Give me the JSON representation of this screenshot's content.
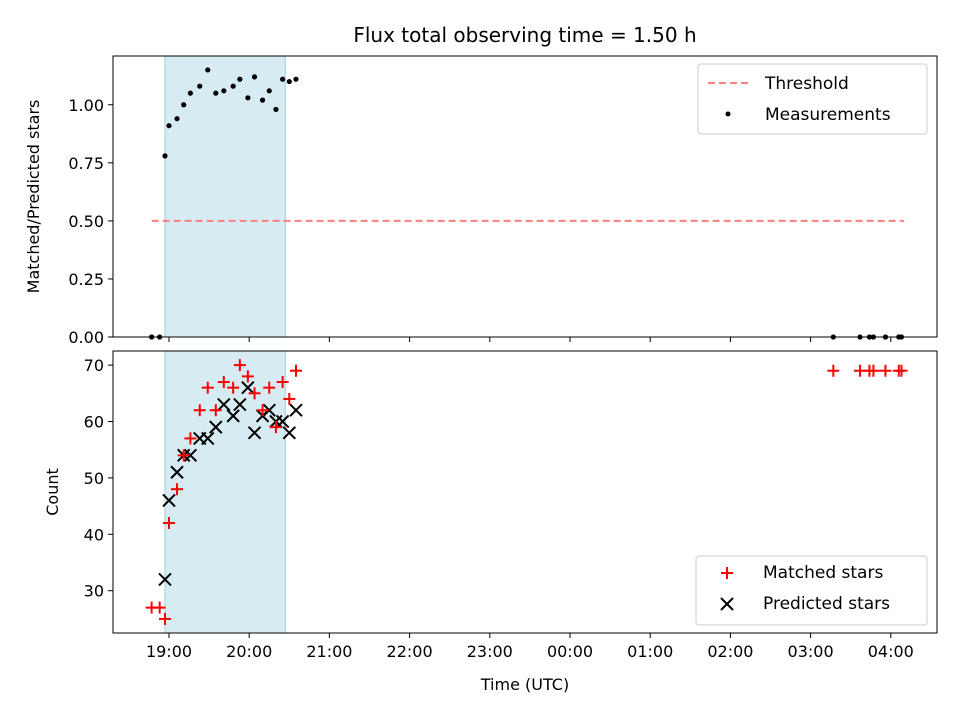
{
  "chart_data": [
    {
      "type": "scatter",
      "title": "Flux total observing time = 1.50 h",
      "xlabel": "",
      "ylabel": "Matched/Predicted stars",
      "ylim": [
        0,
        1.21
      ],
      "yticks": [
        "0.00",
        "0.25",
        "0.50",
        "0.75",
        "1.00"
      ],
      "ytick_values": [
        0,
        0.25,
        0.5,
        0.75,
        1.0
      ],
      "x_axis": "time (UTC), shared with lower panel",
      "shaded_interval": [
        "18:57",
        "20:27"
      ],
      "legend_position": "upper right",
      "series": [
        {
          "name": "Threshold",
          "kind": "line",
          "style": "dashed",
          "color": "#ff7f7f",
          "x": [
            "18:47",
            "04:10"
          ],
          "y": [
            0.5,
            0.5
          ]
        },
        {
          "name": "Measurements",
          "kind": "scatter",
          "color": "#000000",
          "x": [
            "18:47",
            "18:53",
            "18:57",
            "19:00",
            "19:06",
            "19:11",
            "19:16",
            "19:23",
            "19:29",
            "19:35",
            "19:41",
            "19:48",
            "19:53",
            "19:59",
            "20:04",
            "20:10",
            "20:15",
            "20:20",
            "20:25",
            "20:30",
            "20:35",
            "03:17",
            "03:37",
            "03:44",
            "03:47",
            "03:56",
            "04:06",
            "04:08"
          ],
          "y": [
            0.0,
            0.0,
            0.78,
            0.91,
            0.94,
            1.0,
            1.05,
            1.08,
            1.15,
            1.05,
            1.06,
            1.08,
            1.11,
            1.03,
            1.12,
            1.02,
            1.06,
            0.98,
            1.11,
            1.1,
            1.11,
            0.0,
            0.0,
            0.0,
            0.0,
            0.0,
            0.0,
            0.0
          ]
        }
      ]
    },
    {
      "type": "scatter",
      "title": "",
      "xlabel": "Time (UTC)",
      "ylabel": "Count",
      "ylim": [
        22.5,
        72.5
      ],
      "yticks": [
        "30",
        "40",
        "50",
        "60",
        "70"
      ],
      "ytick_values": [
        30,
        40,
        50,
        60,
        70
      ],
      "xticks": [
        "19:00",
        "20:00",
        "21:00",
        "22:00",
        "23:00",
        "00:00",
        "01:00",
        "02:00",
        "03:00",
        "04:00"
      ],
      "shaded_interval": [
        "18:57",
        "20:27"
      ],
      "legend_position": "lower right",
      "series": [
        {
          "name": "Matched stars",
          "marker": "plus",
          "color": "#ff0000",
          "x": [
            "18:47",
            "18:53",
            "18:57",
            "19:00",
            "19:06",
            "19:11",
            "19:16",
            "19:23",
            "19:29",
            "19:35",
            "19:41",
            "19:48",
            "19:53",
            "19:59",
            "20:04",
            "20:10",
            "20:15",
            "20:20",
            "20:25",
            "20:30",
            "20:35",
            "03:17",
            "03:37",
            "03:44",
            "03:47",
            "03:56",
            "04:06",
            "04:08"
          ],
          "y": [
            27,
            27,
            25,
            42,
            48,
            54,
            57,
            62,
            66,
            62,
            67,
            66,
            70,
            68,
            65,
            62,
            66,
            59,
            67,
            64,
            69,
            69,
            69,
            69,
            69,
            69,
            69,
            69
          ]
        },
        {
          "name": "Predicted stars",
          "marker": "x",
          "color": "#000000",
          "x": [
            "18:57",
            "19:00",
            "19:06",
            "19:11",
            "19:16",
            "19:23",
            "19:29",
            "19:35",
            "19:41",
            "19:48",
            "19:53",
            "19:59",
            "20:04",
            "20:10",
            "20:15",
            "20:20",
            "20:25",
            "20:30",
            "20:35"
          ],
          "y": [
            32,
            46,
            51,
            54,
            54,
            57,
            57,
            59,
            63,
            61,
            63,
            66,
            58,
            61,
            62,
            60,
            60,
            58,
            62
          ]
        }
      ]
    }
  ]
}
